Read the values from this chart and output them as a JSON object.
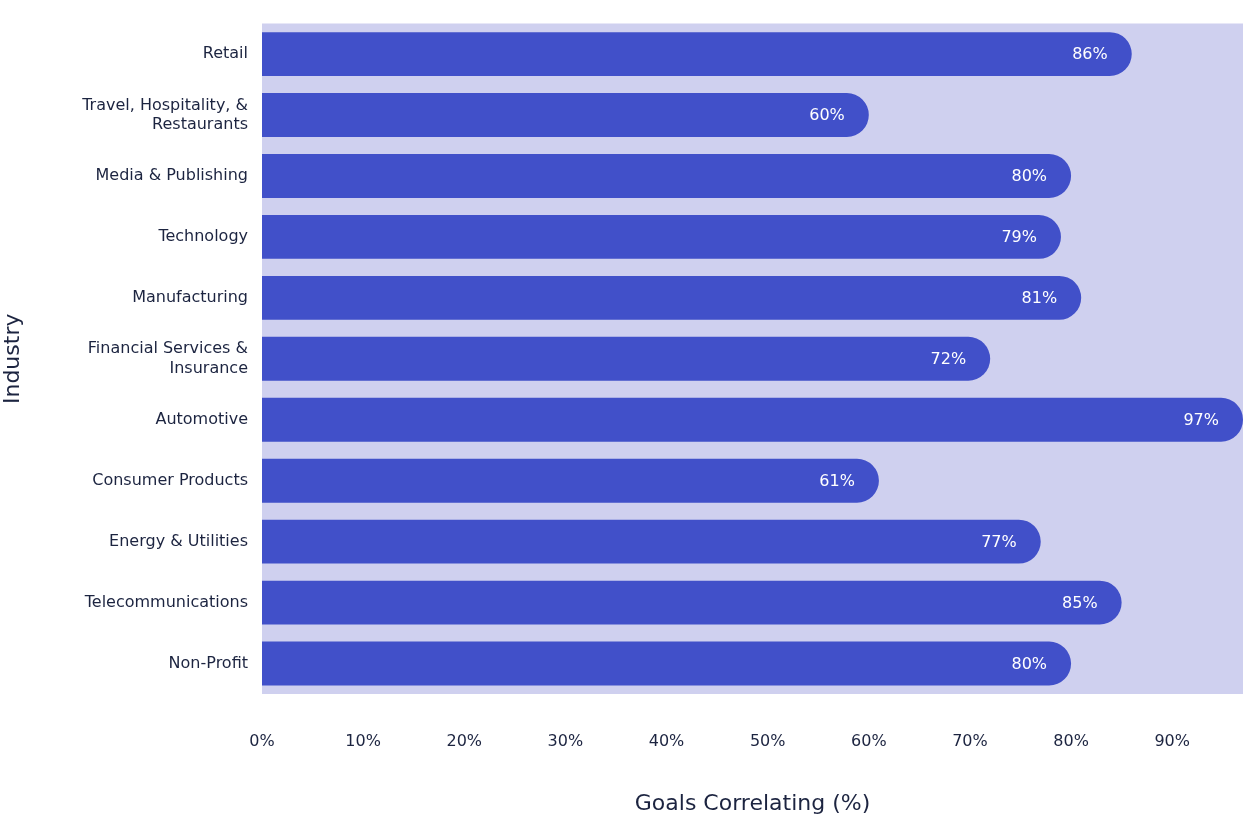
{
  "chart_data": {
    "type": "bar",
    "orientation": "horizontal",
    "xlabel": "Goals Correlating (%)",
    "ylabel": "Industry",
    "categories": [
      "Retail",
      "Travel, Hospitality, & Restaurants",
      "Media & Publishing",
      "Technology",
      "Manufacturing",
      "Financial Services & Insurance",
      "Automotive",
      "Consumer Products",
      "Energy & Utilities",
      "Telecommunications",
      "Non-Profit"
    ],
    "values": [
      86,
      60,
      80,
      79,
      81,
      72,
      97,
      61,
      77,
      85,
      80
    ],
    "value_labels": [
      "86%",
      "60%",
      "80%",
      "79%",
      "81%",
      "72%",
      "97%",
      "61%",
      "77%",
      "85%",
      "80%"
    ],
    "color": "#4150c9",
    "xlim": [
      0,
      97
    ],
    "xticks": [
      {
        "value": 0,
        "label": "0%"
      },
      {
        "value": 10,
        "label": "10%"
      },
      {
        "value": 20,
        "label": "20%"
      },
      {
        "value": 30,
        "label": "30%"
      },
      {
        "value": 40,
        "label": "40%"
      },
      {
        "value": 50,
        "label": "50%"
      },
      {
        "value": 60,
        "label": "60%"
      },
      {
        "value": 70,
        "label": "70%"
      },
      {
        "value": 80,
        "label": "80%"
      },
      {
        "value": 90,
        "label": "90%"
      }
    ],
    "bands": [
      {
        "axis": "x",
        "from": 0,
        "to": 97,
        "color": "#cfd0ef"
      }
    ],
    "grid": false,
    "legend": false
  }
}
